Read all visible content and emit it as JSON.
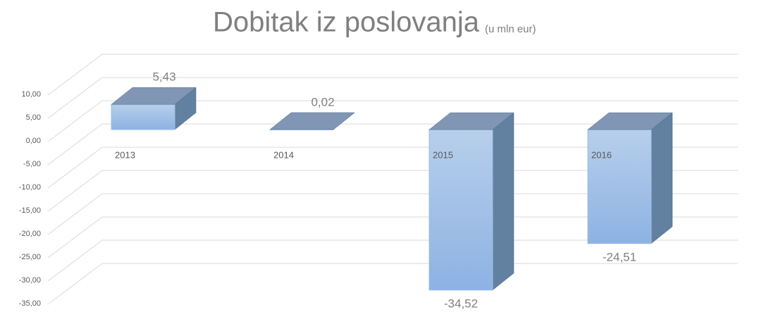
{
  "chart_data": {
    "type": "bar3d",
    "title": "Dobitak iz poslovanja",
    "subtitle": "(u mln eur)",
    "categories": [
      "2013",
      "2014",
      "2015",
      "2016"
    ],
    "values": [
      5.43,
      0.02,
      -34.52,
      -24.51
    ],
    "value_labels": [
      "5,43",
      "0,02",
      "-34,52",
      "-24,51"
    ],
    "color": "#9dbde6",
    "ylim": [
      -35,
      10
    ],
    "yticks": [
      {
        "value": 10,
        "label": "10,00"
      },
      {
        "value": 5,
        "label": "5,00"
      },
      {
        "value": 0,
        "label": "0,00"
      },
      {
        "value": -5,
        "label": "-5,00"
      },
      {
        "value": -10,
        "label": "-10,00"
      },
      {
        "value": -15,
        "label": "-15,00"
      },
      {
        "value": -20,
        "label": "-20,00"
      },
      {
        "value": -25,
        "label": "-25,00"
      },
      {
        "value": -30,
        "label": "-30,00"
      },
      {
        "value": -35,
        "label": "-35,00"
      }
    ],
    "grid": true
  }
}
